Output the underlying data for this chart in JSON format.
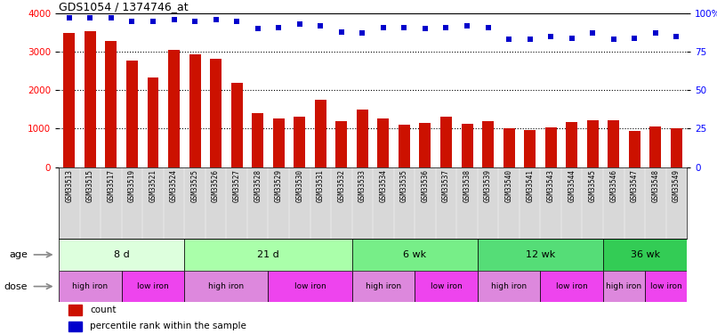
{
  "title": "GDS1054 / 1374746_at",
  "samples": [
    "GSM33513",
    "GSM33515",
    "GSM33517",
    "GSM33519",
    "GSM33521",
    "GSM33524",
    "GSM33525",
    "GSM33526",
    "GSM33527",
    "GSM33528",
    "GSM33529",
    "GSM33530",
    "GSM33531",
    "GSM33532",
    "GSM33533",
    "GSM33534",
    "GSM33535",
    "GSM33536",
    "GSM33537",
    "GSM33538",
    "GSM33539",
    "GSM33540",
    "GSM33541",
    "GSM33543",
    "GSM33544",
    "GSM33545",
    "GSM33546",
    "GSM33547",
    "GSM33548",
    "GSM33549"
  ],
  "counts": [
    3490,
    3530,
    3280,
    2770,
    2340,
    3060,
    2940,
    2820,
    2200,
    1400,
    1260,
    1300,
    1760,
    1190,
    1490,
    1270,
    1090,
    1150,
    1300,
    1130,
    1200,
    1020,
    960,
    1030,
    1170,
    1220,
    1210,
    940,
    1060,
    1020
  ],
  "percentiles": [
    97,
    97,
    97,
    95,
    95,
    96,
    95,
    96,
    95,
    90,
    91,
    93,
    92,
    88,
    87,
    91,
    91,
    90,
    91,
    92,
    91,
    83,
    83,
    85,
    84,
    87,
    83,
    84,
    87,
    85
  ],
  "bar_color": "#cc1100",
  "scatter_color": "#0000cc",
  "ylim_left": [
    0,
    4000
  ],
  "ylim_right": [
    0,
    100
  ],
  "yticks_left": [
    0,
    1000,
    2000,
    3000,
    4000
  ],
  "yticks_right": [
    0,
    25,
    50,
    75,
    100
  ],
  "yticklabels_right": [
    "0",
    "25",
    "50",
    "75",
    "100%"
  ],
  "age_groups": [
    {
      "label": "8 d",
      "start": 0,
      "end": 6,
      "color": "#ddffdd"
    },
    {
      "label": "21 d",
      "start": 6,
      "end": 14,
      "color": "#aaffaa"
    },
    {
      "label": "6 wk",
      "start": 14,
      "end": 20,
      "color": "#77ee88"
    },
    {
      "label": "12 wk",
      "start": 20,
      "end": 26,
      "color": "#55dd77"
    },
    {
      "label": "36 wk",
      "start": 26,
      "end": 30,
      "color": "#33cc55"
    }
  ],
  "dose_hi_color": "#dd88dd",
  "dose_lo_color": "#ee44ee",
  "dose_groups": [
    {
      "label": "high iron",
      "start": 0,
      "end": 3
    },
    {
      "label": "low iron",
      "start": 3,
      "end": 6
    },
    {
      "label": "high iron",
      "start": 6,
      "end": 10
    },
    {
      "label": "low iron",
      "start": 10,
      "end": 14
    },
    {
      "label": "high iron",
      "start": 14,
      "end": 17
    },
    {
      "label": "low iron",
      "start": 17,
      "end": 20
    },
    {
      "label": "high iron",
      "start": 20,
      "end": 23
    },
    {
      "label": "low iron",
      "start": 23,
      "end": 26
    },
    {
      "label": "high iron",
      "start": 26,
      "end": 28
    },
    {
      "label": "low iron",
      "start": 28,
      "end": 30
    }
  ],
  "legend_count_label": "count",
  "legend_pct_label": "percentile rank within the sample",
  "age_label": "age",
  "dose_label": "dose",
  "xtick_bg_color": "#d8d8d8"
}
